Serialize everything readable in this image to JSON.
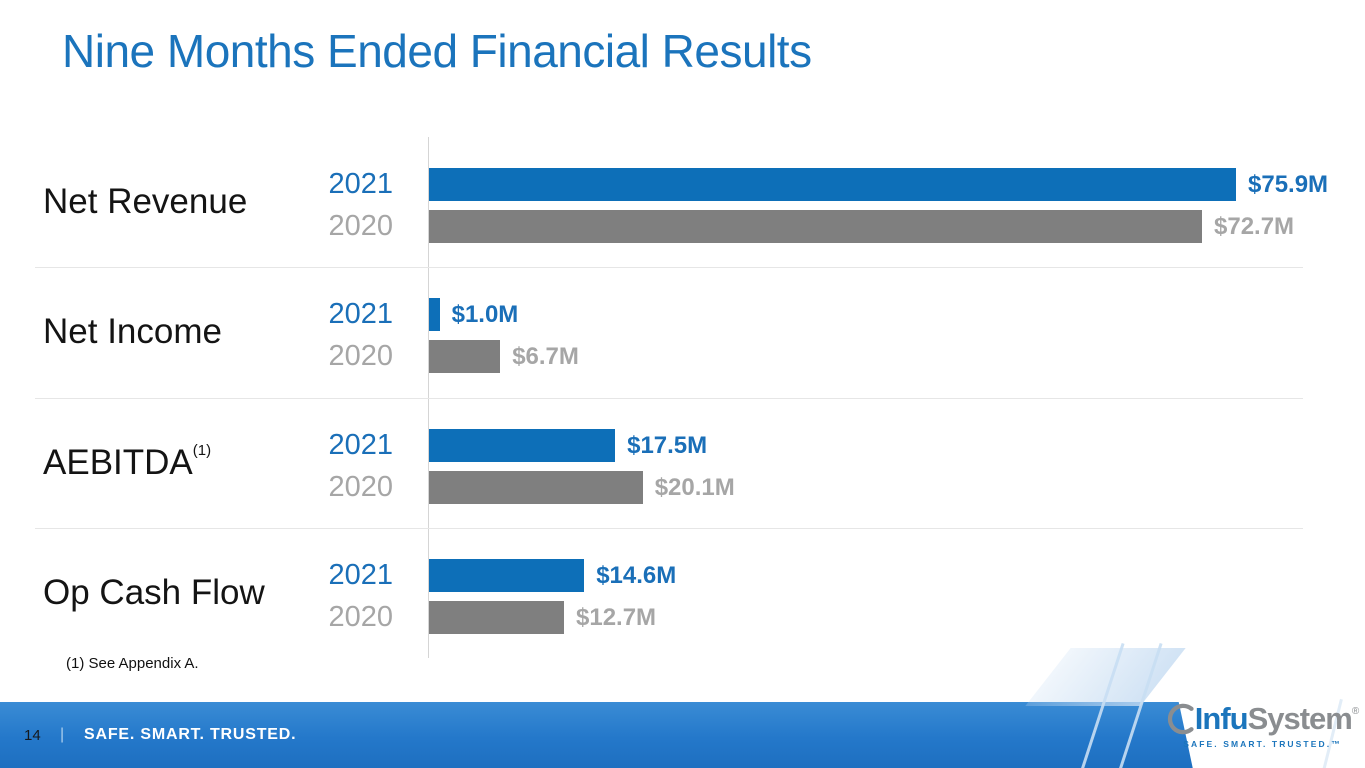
{
  "title": "Nine Months Ended Financial Results",
  "footnote": "(1) See Appendix A.",
  "chart_data": {
    "type": "bar",
    "orientation": "horizontal",
    "title": "Nine Months Ended Financial Results",
    "unit": "millions USD",
    "categories": [
      "Net Revenue",
      "Net Income",
      "AEBITDA",
      "Op Cash Flow"
    ],
    "category_superscripts": [
      "",
      "",
      "(1)",
      ""
    ],
    "series": [
      {
        "name": "2021",
        "color": "#0d6fb8",
        "values": [
          75.9,
          1.0,
          17.5,
          14.6
        ],
        "labels": [
          "$75.9M",
          "$1.0M",
          "$17.5M",
          "$14.6M"
        ]
      },
      {
        "name": "2020",
        "color": "#7f7f7f",
        "values": [
          72.7,
          6.7,
          20.1,
          12.7
        ],
        "labels": [
          "$72.7M",
          "$6.7M",
          "$20.1M",
          "$12.7M"
        ]
      }
    ],
    "xlim": [
      0,
      80
    ],
    "grid": false,
    "legend_position": "year labels left of each bar pair",
    "value_labels": "right of bar end"
  },
  "footer": {
    "page_number": "14",
    "divider": "|",
    "tagline": "SAFE. SMART. TRUSTED."
  },
  "logo": {
    "name_part1": "Infu",
    "name_part2": "System",
    "registered_mark": "®",
    "tagline": "SAFE. SMART. TRUSTED.™"
  },
  "colors": {
    "title_blue": "#1b74bc",
    "bar_blue": "#0d6fb8",
    "bar_gray": "#7f7f7f",
    "label_blue": "#1a6fb8",
    "label_gray": "#a6a6a6",
    "axis_line": "#d5d5d5",
    "row_divider": "#e6e6e6",
    "footer_blue_top": "#3a8cd5",
    "footer_blue_bottom": "#1e6fc0",
    "logo_blue": "#1b75bc",
    "logo_gray": "#8a8d90"
  }
}
